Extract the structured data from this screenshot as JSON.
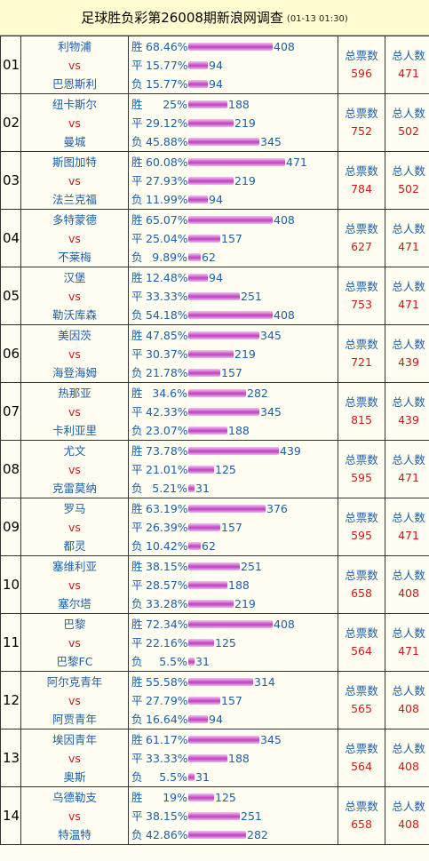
{
  "header": {
    "title": "足球胜负彩第26008期新浪网调查",
    "time": "(01-13 01:30)"
  },
  "labels": {
    "win": "胜",
    "draw": "平",
    "lose": "负",
    "vs": "vs",
    "ticket_label": "总票数",
    "people_label": "总人数"
  },
  "colors": {
    "text_blue": "#1c5fa8",
    "text_red": "#d01818",
    "bar_purple": "#c040c0",
    "header_bg": "#fffccf"
  },
  "matches": [
    {
      "no": "01",
      "home": "利物浦",
      "away": "巴恩斯利",
      "win_pct": "68.46%",
      "win": 408,
      "draw_pct": "15.77%",
      "draw": 94,
      "lose_pct": "15.77%",
      "lose": 94,
      "tickets": 596,
      "people": 471
    },
    {
      "no": "02",
      "home": "纽卡斯尔",
      "away": "曼城",
      "win_pct": "25%",
      "win": 188,
      "draw_pct": "29.12%",
      "draw": 219,
      "lose_pct": "45.88%",
      "lose": 345,
      "tickets": 752,
      "people": 502
    },
    {
      "no": "03",
      "home": "斯图加特",
      "away": "法兰克福",
      "win_pct": "60.08%",
      "win": 471,
      "draw_pct": "27.93%",
      "draw": 219,
      "lose_pct": "11.99%",
      "lose": 94,
      "tickets": 784,
      "people": 502
    },
    {
      "no": "04",
      "home": "多特蒙德",
      "away": "不莱梅",
      "win_pct": "65.07%",
      "win": 408,
      "draw_pct": "25.04%",
      "draw": 157,
      "lose_pct": "9.89%",
      "lose": 62,
      "tickets": 627,
      "people": 471
    },
    {
      "no": "05",
      "home": "汉堡",
      "away": "勒沃库森",
      "win_pct": "12.48%",
      "win": 94,
      "draw_pct": "33.33%",
      "draw": 251,
      "lose_pct": "54.18%",
      "lose": 408,
      "tickets": 753,
      "people": 471
    },
    {
      "no": "06",
      "home": "美因茨",
      "away": "海登海姆",
      "win_pct": "47.85%",
      "win": 345,
      "draw_pct": "30.37%",
      "draw": 219,
      "lose_pct": "21.78%",
      "lose": 157,
      "tickets": 721,
      "people": 439
    },
    {
      "no": "07",
      "home": "热那亚",
      "away": "卡利亚里",
      "win_pct": "34.6%",
      "win": 282,
      "draw_pct": "42.33%",
      "draw": 345,
      "lose_pct": "23.07%",
      "lose": 188,
      "tickets": 815,
      "people": 439
    },
    {
      "no": "08",
      "home": "尤文",
      "away": "克雷莫纳",
      "win_pct": "73.78%",
      "win": 439,
      "draw_pct": "21.01%",
      "draw": 125,
      "lose_pct": "5.21%",
      "lose": 31,
      "tickets": 595,
      "people": 471
    },
    {
      "no": "09",
      "home": "罗马",
      "away": "都灵",
      "win_pct": "63.19%",
      "win": 376,
      "draw_pct": "26.39%",
      "draw": 157,
      "lose_pct": "10.42%",
      "lose": 62,
      "tickets": 595,
      "people": 471
    },
    {
      "no": "10",
      "home": "塞维利亚",
      "away": "塞尔塔",
      "win_pct": "38.15%",
      "win": 251,
      "draw_pct": "28.57%",
      "draw": 188,
      "lose_pct": "33.28%",
      "lose": 219,
      "tickets": 658,
      "people": 408
    },
    {
      "no": "11",
      "home": "巴黎",
      "away": "巴黎FC",
      "win_pct": "72.34%",
      "win": 408,
      "draw_pct": "22.16%",
      "draw": 125,
      "lose_pct": "5.5%",
      "lose": 31,
      "tickets": 564,
      "people": 471
    },
    {
      "no": "12",
      "home": "阿尔克青年",
      "away": "阿贾青年",
      "win_pct": "55.58%",
      "win": 314,
      "draw_pct": "27.79%",
      "draw": 157,
      "lose_pct": "16.64%",
      "lose": 94,
      "tickets": 565,
      "people": 408
    },
    {
      "no": "13",
      "home": "埃因青年",
      "away": "奥斯",
      "win_pct": "61.17%",
      "win": 345,
      "draw_pct": "33.33%",
      "draw": 188,
      "lose_pct": "5.5%",
      "lose": 31,
      "tickets": 564,
      "people": 408
    },
    {
      "no": "14",
      "home": "乌德勒支",
      "away": "特温特",
      "win_pct": "19%",
      "win": 125,
      "draw_pct": "38.15%",
      "draw": 251,
      "lose_pct": "42.86%",
      "lose": 282,
      "tickets": 658,
      "people": 408
    }
  ]
}
